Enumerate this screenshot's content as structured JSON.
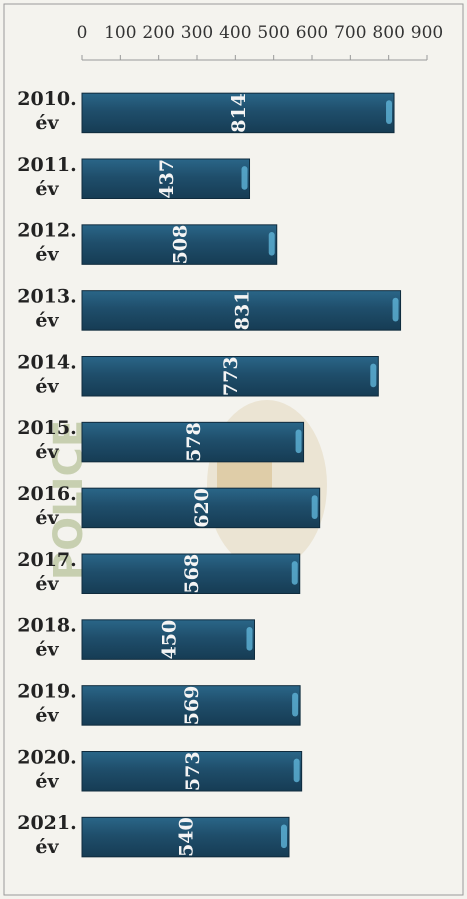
{
  "chart_data": {
    "type": "bar",
    "orientation": "horizontal",
    "categories": [
      "2010. év",
      "2011. év",
      "2012. év",
      "2013. év",
      "2014. év",
      "2015. év",
      "2016. év",
      "2017. év",
      "2018. év",
      "2019. év",
      "2020. év",
      "2021. év"
    ],
    "values": [
      814,
      437,
      508,
      831,
      773,
      578,
      620,
      568,
      450,
      569,
      573,
      540
    ],
    "value_labels": [
      "814",
      "437",
      "508",
      "831",
      "773",
      "578",
      "620",
      "568",
      "450",
      "569",
      "573",
      "540"
    ],
    "xlim": [
      0,
      900
    ],
    "ticks": [
      "0",
      "100",
      "200",
      "300",
      "400",
      "500",
      "600",
      "700",
      "800",
      "900"
    ],
    "grid": false,
    "legend": "none",
    "bar_color": "#1f4e6b",
    "bar_highlight": "#5fb4d8",
    "watermark": "POLICE"
  }
}
